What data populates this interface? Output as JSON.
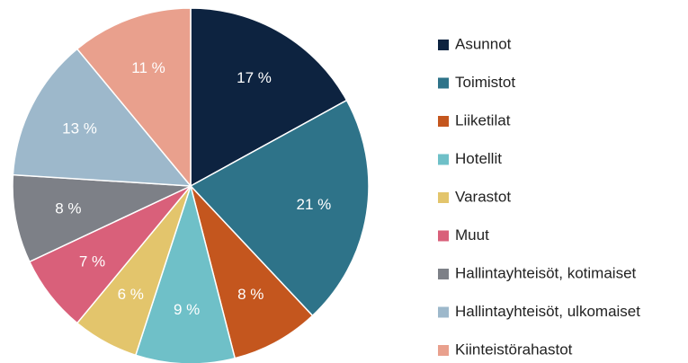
{
  "chart_data": {
    "type": "pie",
    "categories": [
      "Asunnot",
      "Toimistot",
      "Liiketilat",
      "Hotellit",
      "Varastot",
      "Muut",
      "Hallintayhteisöt, kotimaiset",
      "Hallintayhteisöt, ulkomaiset",
      "Kiinteistörahastot"
    ],
    "values": [
      17,
      21,
      8,
      9,
      6,
      7,
      8,
      13,
      11
    ],
    "value_labels": [
      "17 %",
      "21 %",
      "8 %",
      "9 %",
      "6 %",
      "7 %",
      "8 %",
      "13 %",
      "11 %"
    ],
    "colors": [
      "#0d2340",
      "#2e7389",
      "#c4561e",
      "#6fc0c8",
      "#e3c56c",
      "#d9607a",
      "#7d8087",
      "#9db8cb",
      "#e9a08d"
    ],
    "legend": "right"
  }
}
